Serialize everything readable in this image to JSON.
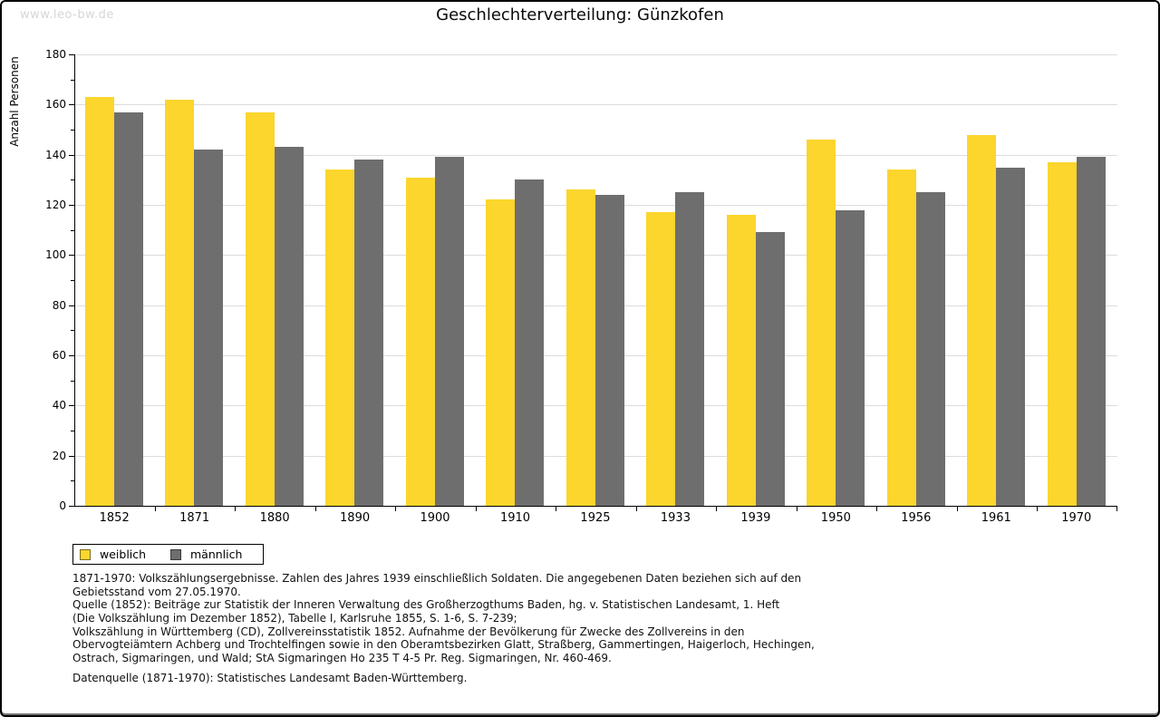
{
  "page": {
    "watermark": "www.leo-bw.de",
    "title": "Geschlechterverteilung: Günzkofen"
  },
  "chart_data": {
    "type": "bar",
    "title": "Geschlechterverteilung: Günzkofen",
    "xlabel": "",
    "ylabel": "Anzahl Personen",
    "ylim": [
      0,
      180
    ],
    "ytick_step": 20,
    "yminor_step": 10,
    "grid": true,
    "legend_position": "bottom-left",
    "categories": [
      "1852",
      "1871",
      "1880",
      "1890",
      "1900",
      "1910",
      "1925",
      "1933",
      "1939",
      "1950",
      "1956",
      "1961",
      "1970"
    ],
    "series": [
      {
        "name": "weiblich",
        "color": "#FCD52D",
        "values": [
          163,
          162,
          157,
          134,
          131,
          122,
          126,
          117,
          116,
          146,
          134,
          148,
          137
        ]
      },
      {
        "name": "männlich",
        "color": "#6E6E6E",
        "values": [
          157,
          142,
          143,
          138,
          139,
          130,
          124,
          125,
          109,
          118,
          125,
          135,
          139
        ]
      }
    ]
  },
  "legend": {
    "items": [
      {
        "label": "weiblich",
        "color": "#FCD52D",
        "border": "#7a6c20"
      },
      {
        "label": "männlich",
        "color": "#6E6E6E",
        "border": "#3a3a3a"
      }
    ]
  },
  "footer": {
    "lines": [
      "1871-1970: Volkszählungsergebnisse. Zahlen des Jahres 1939 einschließlich Soldaten. Die angegebenen Daten beziehen sich auf den",
      "Gebietsstand vom 27.05.1970.",
      "Quelle (1852): Beiträge zur Statistik der Inneren Verwaltung des Großherzogthums Baden, hg. v. Statistischen Landesamt, 1. Heft",
      "(Die Volkszählung im Dezember 1852), Tabelle I, Karlsruhe 1855, S. 1-6, S. 7-239;",
      "Volkszählung in Württemberg (CD), Zollvereinsstatistik 1852. Aufnahme der Bevölkerung für Zwecke des Zollvereins in den",
      "Obervogteiämtern Achberg und Trochtelfingen sowie in den Oberamtsbezirken Glatt, Straßberg, Gammertingen, Haigerloch, Hechingen,",
      "Ostrach, Sigmaringen, und Wald; StA Sigmaringen Ho 235 T 4-5 Pr. Reg. Sigmaringen, Nr. 460-469.",
      "",
      "Datenquelle (1871-1970): Statistisches Landesamt Baden-Württemberg."
    ]
  },
  "colors": {
    "grid": "#dcdcdc",
    "axis": "#000000",
    "watermark": "#d6d6d6"
  }
}
